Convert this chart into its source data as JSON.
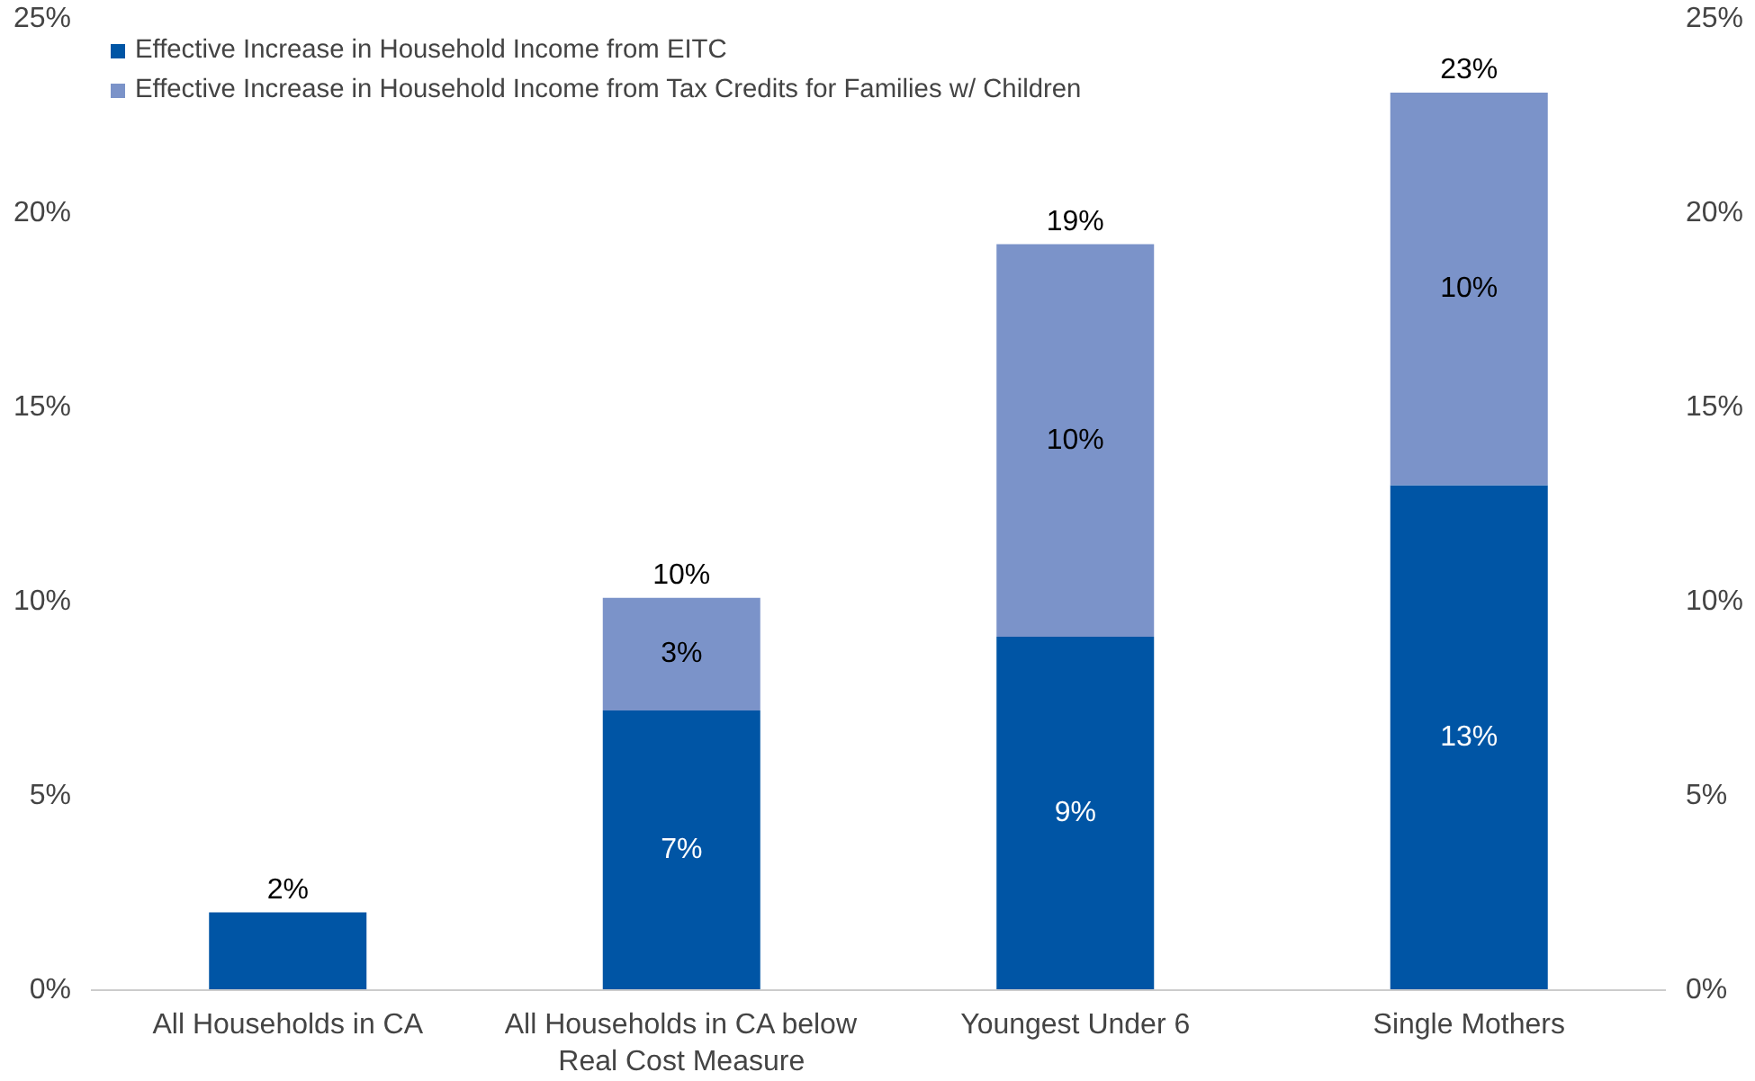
{
  "chart_data": {
    "type": "bar",
    "stacked": true,
    "categories": [
      "All Households in CA",
      "All Households in CA below Real Cost Measure",
      "Youngest Under 6",
      "Single Mothers"
    ],
    "series": [
      {
        "name": "Effective Increase in Household Income from EITC",
        "color": "#0055a5",
        "values": [
          2.0,
          7.2,
          9.1,
          13.0
        ],
        "value_labels": [
          null,
          "7%",
          "9%",
          "13%"
        ]
      },
      {
        "name": "Effective Increase in Household Income from Tax Credits for Families w/ Children",
        "color": "#7b93c9",
        "values": [
          null,
          2.9,
          10.1,
          10.1
        ],
        "value_labels": [
          null,
          "3%",
          "10%",
          "10%"
        ]
      }
    ],
    "totals": [
      "2%",
      "10%",
      "19%",
      "23%"
    ],
    "ylim": [
      0,
      25
    ],
    "yticks": [
      {
        "value": 0,
        "label": "0%"
      },
      {
        "value": 5,
        "label": "5%"
      },
      {
        "value": 10,
        "label": "10%"
      },
      {
        "value": 15,
        "label": "15%"
      },
      {
        "value": 20,
        "label": "20%"
      },
      {
        "value": 25,
        "label": "25%"
      }
    ],
    "y2lim": [
      0,
      25
    ],
    "y2ticks": [
      {
        "value": 0,
        "label": "0%"
      },
      {
        "value": 5,
        "label": "5%"
      },
      {
        "value": 10,
        "label": "10%"
      },
      {
        "value": 15,
        "label": "15%"
      },
      {
        "value": 20,
        "label": "20%"
      },
      {
        "value": 25,
        "label": "25%"
      }
    ],
    "grid": false,
    "legend": "top left"
  }
}
